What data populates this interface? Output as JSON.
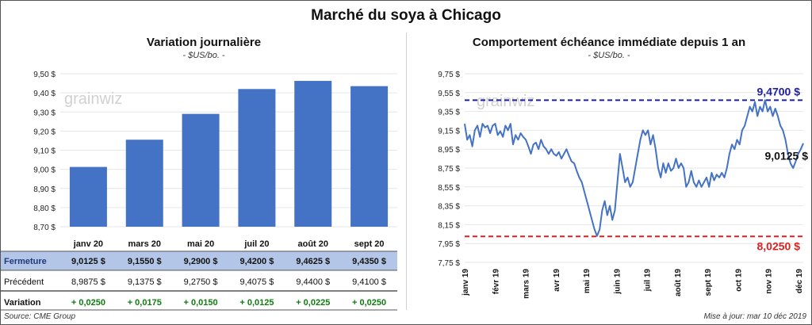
{
  "page": {
    "title": "Marché du soya à Chicago",
    "source": "Source: CME Group",
    "updated": "Mise à jour: mar 10 déc 2019",
    "watermark": "grainwiz"
  },
  "colors": {
    "bar": "#4472C4",
    "line": "#4472C4",
    "max_line": "#1F1F9F",
    "min_line": "#E02020",
    "table_header_bg": "#B4C6E7",
    "variation_text": "#107C10"
  },
  "chart_data": [
    {
      "type": "bar",
      "title": "Variation journalière",
      "units": "- $US/bo. -",
      "categories": [
        "janv 20",
        "mars 20",
        "mai 20",
        "juil 20",
        "août 20",
        "sept 20"
      ],
      "values": [
        9.0125,
        9.155,
        9.29,
        9.42,
        9.4625,
        9.435
      ],
      "ylim": [
        8.7,
        9.5
      ],
      "yticks": [
        "8,70 $",
        "8,80 $",
        "8,90 $",
        "9,00 $",
        "9,10 $",
        "9,20 $",
        "9,30 $",
        "9,40 $",
        "9,50 $"
      ],
      "table": {
        "rows": [
          {
            "label": "Fermeture",
            "values": [
              "9,0125  $",
              "9,1550  $",
              "9,2900  $",
              "9,4200  $",
              "9,4625  $",
              "9,4350  $"
            ]
          },
          {
            "label": "Précédent",
            "values": [
              "8,9875  $",
              "9,1375  $",
              "9,2750  $",
              "9,4075  $",
              "9,4400  $",
              "9,4100  $"
            ]
          },
          {
            "label": "Variation",
            "values": [
              "+ 0,0250",
              "+ 0,0175",
              "+ 0,0150",
              "+ 0,0125",
              "+ 0,0225",
              "+ 0,0250"
            ]
          }
        ]
      }
    },
    {
      "type": "line",
      "title": "Comportement  échéance immédiate depuis 1 an",
      "units": "- $US/bo. -",
      "ylim": [
        7.75,
        9.75
      ],
      "yticks": [
        "7,75 $",
        "7,95 $",
        "8,15 $",
        "8,35 $",
        "8,55 $",
        "8,75 $",
        "8,95 $",
        "9,15 $",
        "9,35 $",
        "9,55 $",
        "9,75 $"
      ],
      "xlabels": [
        "janv 19",
        "févr 19",
        "mars 19",
        "avr 19",
        "mai 19",
        "juin 19",
        "juil 19",
        "août 19",
        "sept 19",
        "oct 19",
        "nov 19",
        "déc 19"
      ],
      "max_value": 9.47,
      "max_label": "9,4700 $",
      "min_value": 8.025,
      "min_label": "8,0250 $",
      "last_label": "9,0125 $",
      "values": [
        9.22,
        9.05,
        9.1,
        8.98,
        9.15,
        9.2,
        9.08,
        9.22,
        9.18,
        9.2,
        9.12,
        9.2,
        9.22,
        9.1,
        9.14,
        9.08,
        9.2,
        9.15,
        9.22,
        9.0,
        9.1,
        9.05,
        9.12,
        9.08,
        9.05,
        8.98,
        8.9,
        9.0,
        9.02,
        8.95,
        9.05,
        8.98,
        8.95,
        8.9,
        8.95,
        8.9,
        8.88,
        8.92,
        8.85,
        8.9,
        8.95,
        8.88,
        8.82,
        8.8,
        8.72,
        8.65,
        8.6,
        8.5,
        8.4,
        8.3,
        8.2,
        8.1,
        8.03,
        8.1,
        8.3,
        8.4,
        8.25,
        8.35,
        8.2,
        8.3,
        8.6,
        8.9,
        8.75,
        8.6,
        8.65,
        8.55,
        8.6,
        8.75,
        8.9,
        9.05,
        9.15,
        9.1,
        9.15,
        9.0,
        9.1,
        8.95,
        8.75,
        8.65,
        8.8,
        8.7,
        8.8,
        8.72,
        8.75,
        8.85,
        8.75,
        8.8,
        8.75,
        8.55,
        8.6,
        8.72,
        8.6,
        8.55,
        8.62,
        8.55,
        8.6,
        8.65,
        8.55,
        8.7,
        8.62,
        8.68,
        8.65,
        8.7,
        8.65,
        8.75,
        8.9,
        9.0,
        8.95,
        9.05,
        9.0,
        9.15,
        9.2,
        9.3,
        9.4,
        9.35,
        9.45,
        9.3,
        9.4,
        9.35,
        9.47,
        9.35,
        9.4,
        9.3,
        9.38,
        9.3,
        9.2,
        9.15,
        9.05,
        8.9,
        8.8,
        8.75,
        8.82,
        8.9,
        8.95,
        9.0125
      ]
    }
  ]
}
